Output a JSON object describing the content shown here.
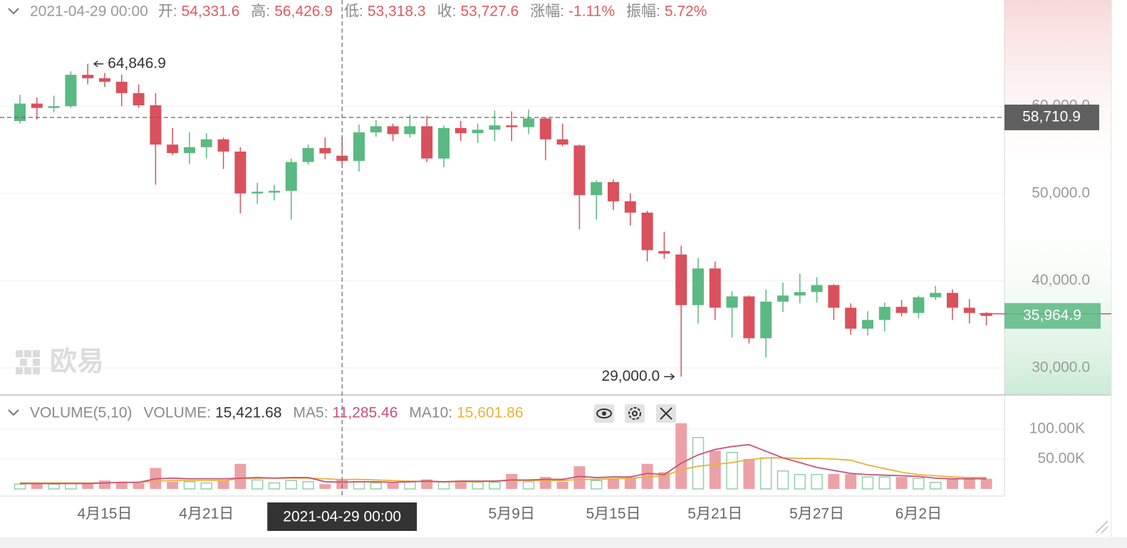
{
  "chart_data": {
    "type": "candlestick",
    "legend": {
      "date": "2021-04-29 00:00",
      "value_color": "#dd5b60",
      "items": [
        {
          "label": "开:",
          "value": "54,331.6"
        },
        {
          "label": "高:",
          "value": "56,426.9"
        },
        {
          "label": "低:",
          "value": "53,318.3"
        },
        {
          "label": "收:",
          "value": "53,727.6"
        },
        {
          "label": "涨幅:",
          "value": "-1.11%"
        },
        {
          "label": "振幅:",
          "value": "5.72%"
        }
      ]
    },
    "volume_legend": {
      "title": "VOLUME(5,10)",
      "items": [
        {
          "label": "VOLUME:",
          "value": "15,421.68",
          "color": "#333333"
        },
        {
          "label": "MA5:",
          "value": "11,285.46",
          "color": "#c9517a"
        },
        {
          "label": "MA10:",
          "value": "15,601.86",
          "color": "#e8b339"
        }
      ]
    },
    "watermark": "欧易",
    "categories": [
      null,
      null,
      null,
      null,
      null,
      "4月15日",
      null,
      null,
      null,
      null,
      null,
      "4月21日",
      null,
      null,
      null,
      null,
      null,
      null,
      null,
      null,
      null,
      null,
      null,
      null,
      null,
      null,
      null,
      null,
      null,
      "5月9日",
      null,
      null,
      null,
      null,
      null,
      "5月15日",
      null,
      null,
      null,
      null,
      null,
      "5月21日",
      null,
      null,
      null,
      null,
      null,
      "5月27日",
      null,
      null,
      null,
      null,
      null,
      "6月2日",
      null,
      null,
      null,
      null
    ],
    "open": [
      58300,
      60300,
      59800,
      60000,
      63600,
      63200,
      62800,
      61500,
      60100,
      55600,
      54630,
      55300,
      56200,
      54800,
      50000,
      50100,
      50300,
      53600,
      55200,
      54331.6,
      53727.6,
      57000,
      57700,
      56800,
      57700,
      54000,
      57500,
      56900,
      57300,
      57800,
      57600,
      58600,
      56200,
      55500,
      49800,
      51300,
      49100,
      47800,
      43400,
      43000,
      37200,
      41400,
      36900,
      38200,
      33400,
      37600,
      38300,
      38700,
      39500,
      36900,
      34500,
      35500,
      37000,
      36300,
      38100,
      38600,
      36900,
      36300
    ],
    "high": [
      61300,
      61000,
      61200,
      64000,
      64846.9,
      63800,
      63600,
      62500,
      61500,
      57500,
      57000,
      56900,
      56400,
      55300,
      51200,
      51000,
      54000,
      55600,
      56400,
      56426.9,
      57900,
      58400,
      58000,
      59000,
      58900,
      57800,
      58300,
      58000,
      59500,
      59400,
      59600,
      58700,
      58000,
      55600,
      51500,
      51600,
      50000,
      48000,
      45600,
      44000,
      42600,
      42200,
      38800,
      38300,
      39000,
      39800,
      40800,
      40400,
      39600,
      37400,
      36500,
      37500,
      37800,
      38300,
      39400,
      39000,
      37900,
      36400
    ],
    "low": [
      58000,
      58470,
      59300,
      59800,
      62500,
      62200,
      60000,
      59800,
      51000,
      54400,
      53400,
      54000,
      52800,
      47700,
      48800,
      49200,
      47000,
      53300,
      53900,
      53318.3,
      52500,
      56500,
      56000,
      56400,
      53600,
      53000,
      56000,
      55800,
      56000,
      56000,
      56800,
      53800,
      55400,
      45900,
      47000,
      48100,
      46300,
      42200,
      42500,
      29000,
      35100,
      35500,
      33500,
      32800,
      31200,
      36400,
      37400,
      37500,
      35500,
      33800,
      33700,
      34200,
      35900,
      35700,
      37800,
      35500,
      35100,
      34900
    ],
    "close": [
      60300,
      59800,
      60000,
      63600,
      63200,
      62800,
      61500,
      60100,
      55600,
      54630,
      55300,
      56200,
      54800,
      50000,
      50200,
      50300,
      53600,
      55200,
      54600,
      53727.6,
      57000,
      57700,
      56800,
      57700,
      54000,
      57500,
      56900,
      57300,
      57800,
      57600,
      58600,
      56200,
      55600,
      49800,
      51300,
      49100,
      47800,
      43500,
      43100,
      37200,
      41400,
      36900,
      38200,
      33400,
      37600,
      38300,
      38700,
      39500,
      36900,
      34500,
      35500,
      37000,
      36300,
      38100,
      38600,
      36900,
      36300,
      35964.9
    ],
    "volume": [
      8000,
      9000,
      8000,
      9000,
      10000,
      14000,
      12000,
      10000,
      35000,
      12000,
      12000,
      10000,
      14000,
      42000,
      15000,
      10000,
      14000,
      12000,
      8000,
      15421.68,
      12000,
      10000,
      10000,
      12000,
      16000,
      12000,
      14000,
      11000,
      11000,
      25000,
      12000,
      20000,
      12000,
      38000,
      14000,
      18000,
      18000,
      42000,
      28000,
      110000,
      86000,
      64000,
      61000,
      50000,
      52000,
      30000,
      24000,
      24000,
      25000,
      25000,
      20000,
      20000,
      20000,
      18000,
      11000,
      17000,
      17000,
      17000
    ],
    "ma5": [
      9000,
      9000,
      9000,
      9000,
      9000,
      10000,
      11000,
      11000,
      17000,
      18000,
      17000,
      17000,
      17000,
      18000,
      19000,
      18000,
      19000,
      19000,
      12000,
      11285.46,
      12000,
      12000,
      11000,
      12000,
      13000,
      12000,
      13000,
      13000,
      13000,
      15000,
      15000,
      16000,
      16000,
      21000,
      19000,
      20000,
      20000,
      26000,
      24000,
      43000,
      57000,
      66000,
      71000,
      74000,
      63000,
      52000,
      44000,
      36000,
      31000,
      26000,
      24000,
      23000,
      22000,
      21000,
      18000,
      17000,
      17000,
      17000
    ],
    "ma10": [
      10000,
      10000,
      10000,
      10000,
      10000,
      10000,
      11000,
      11000,
      13000,
      14000,
      14000,
      14000,
      14000,
      17000,
      18000,
      18000,
      18000,
      18000,
      17000,
      15601.86,
      16000,
      15000,
      14000,
      13000,
      12000,
      12000,
      12000,
      12000,
      13000,
      14000,
      14000,
      14000,
      14000,
      16000,
      16000,
      17000,
      18000,
      20000,
      22000,
      32000,
      38000,
      41000,
      44000,
      49000,
      52000,
      52000,
      51000,
      51000,
      50000,
      48000,
      40000,
      34000,
      28000,
      24000,
      22000,
      20000,
      19000,
      19000
    ],
    "ma5_color": "#c9517a",
    "ma10_color": "#e8b339",
    "up_color": "#5bb983",
    "down_color": "#d9515c",
    "up_volume_color": "#93d0a8",
    "down_volume_color": "#eba2a7",
    "ylim": [
      26900,
      72170
    ],
    "yticks": [
      {
        "value": 30000,
        "label": "30,000.0"
      },
      {
        "value": 40000,
        "label": "40,000.0"
      },
      {
        "value": 50000,
        "label": "50,000.0"
      },
      {
        "value": 60000,
        "label": "60,000.0"
      }
    ],
    "volume_ylim": [
      0,
      150000
    ],
    "volume_yticks": [
      {
        "value": 50000,
        "label": "50.00K"
      },
      {
        "value": 100000,
        "label": "100.00K"
      }
    ],
    "grid": true,
    "high_label": "64,846.9",
    "low_label": "29,000.0",
    "last_price_label": "35,964.9",
    "crosshair": {
      "x_label": "2021-04-29 00:00",
      "y_label": "58,710.9",
      "y_value": 58710.9
    }
  }
}
